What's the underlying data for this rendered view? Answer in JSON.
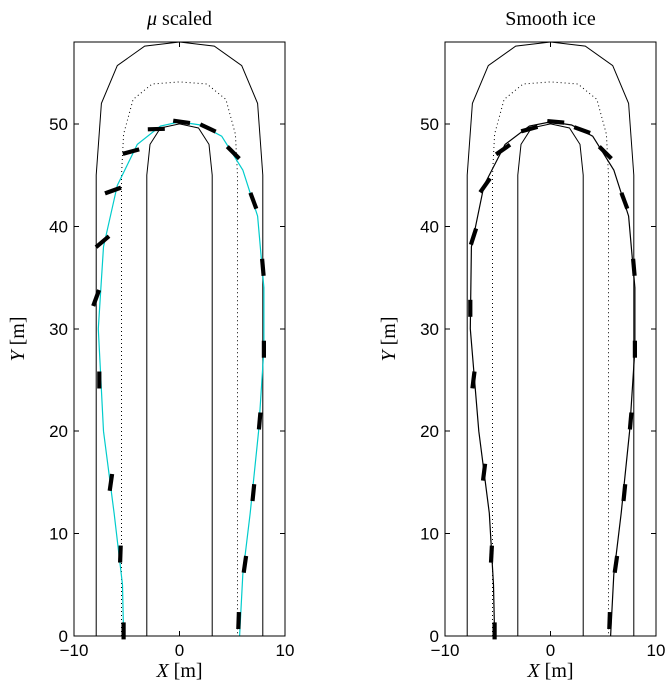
{
  "chart_data": [
    {
      "type": "line",
      "title_symbol": "μ",
      "title_text": "scaled",
      "xlabel_var": "X",
      "xlabel_unit": "[m]",
      "ylabel_var": "Y",
      "ylabel_unit": "[m]",
      "xlim": [
        -10,
        10
      ],
      "ylim": [
        0,
        58
      ],
      "xticks": [
        -10,
        0,
        10
      ],
      "yticks": [
        0,
        10,
        20,
        30,
        40,
        50
      ],
      "grid": false,
      "legend": "none",
      "track": {
        "outer": [
          [
            -7.9,
            0
          ],
          [
            -7.9,
            45
          ],
          [
            -7.4,
            52
          ],
          [
            -5.9,
            55.7
          ],
          [
            -3.3,
            57.6
          ],
          [
            0,
            58
          ],
          [
            3.3,
            57.6
          ],
          [
            5.9,
            55.7
          ],
          [
            7.4,
            52
          ],
          [
            7.9,
            45
          ],
          [
            7.9,
            0
          ]
        ],
        "inner": [
          [
            -3.1,
            0
          ],
          [
            -3.1,
            45
          ],
          [
            -2.8,
            48
          ],
          [
            -1.8,
            49.6
          ],
          [
            0,
            50
          ],
          [
            1.8,
            49.6
          ],
          [
            2.8,
            48
          ],
          [
            3.1,
            45
          ],
          [
            3.1,
            0
          ]
        ],
        "center": [
          [
            -5.5,
            0
          ],
          [
            -5.5,
            45
          ],
          [
            -5.3,
            49
          ],
          [
            -4.4,
            52.4
          ],
          [
            -2.6,
            53.9
          ],
          [
            0,
            54.1
          ],
          [
            2.6,
            53.9
          ],
          [
            4.4,
            52.4
          ],
          [
            5.3,
            49
          ],
          [
            5.5,
            45
          ],
          [
            5.5,
            0
          ]
        ]
      },
      "path": [
        [
          -5.3,
          0
        ],
        [
          -5.4,
          5
        ],
        [
          -6.2,
          12
        ],
        [
          -7.2,
          20
        ],
        [
          -7.7,
          30
        ],
        [
          -7.2,
          38
        ],
        [
          -5.9,
          44
        ],
        [
          -4.0,
          48
        ],
        [
          -1.8,
          49.8
        ],
        [
          0,
          50.2
        ],
        [
          2.0,
          49.9
        ],
        [
          4.0,
          48.8
        ],
        [
          6.0,
          45.5
        ],
        [
          7.4,
          41
        ],
        [
          8.0,
          34
        ],
        [
          8.0,
          28
        ],
        [
          7.5,
          20
        ],
        [
          6.7,
          12
        ],
        [
          6.0,
          6
        ],
        [
          5.7,
          0
        ]
      ],
      "heading_segments": [
        {
          "x": -5.3,
          "y": 0.5,
          "angle": 90
        },
        {
          "x": -5.6,
          "y": 8,
          "angle": 88
        },
        {
          "x": -6.5,
          "y": 15,
          "angle": 82
        },
        {
          "x": -7.6,
          "y": 25,
          "angle": 90
        },
        {
          "x": -7.9,
          "y": 33,
          "angle": 70
        },
        {
          "x": -7.3,
          "y": 38.5,
          "angle": 40
        },
        {
          "x": -6.3,
          "y": 43.5,
          "angle": 20
        },
        {
          "x": -4.6,
          "y": 47.3,
          "angle": 15
        },
        {
          "x": -2.2,
          "y": 49.5,
          "angle": 2
        },
        {
          "x": 0.2,
          "y": 50.2,
          "angle": -8
        },
        {
          "x": 2.7,
          "y": 49.6,
          "angle": -25
        },
        {
          "x": 5.1,
          "y": 47.2,
          "angle": -45
        },
        {
          "x": 7.0,
          "y": 42.5,
          "angle": -70
        },
        {
          "x": 7.9,
          "y": 36,
          "angle": -85
        },
        {
          "x": 8.0,
          "y": 28,
          "angle": -90
        },
        {
          "x": 7.6,
          "y": 21,
          "angle": -95
        },
        {
          "x": 7.0,
          "y": 14,
          "angle": -96
        },
        {
          "x": 6.2,
          "y": 7,
          "angle": -98
        },
        {
          "x": 5.6,
          "y": 1.5,
          "angle": -92
        }
      ],
      "colors": {
        "path": "#00cccc",
        "track": "#000000",
        "vehicle": "#000000"
      }
    },
    {
      "type": "line",
      "title_symbol": "",
      "title_text": "Smooth ice",
      "xlabel_var": "X",
      "xlabel_unit": "[m]",
      "ylabel_var": "Y",
      "ylabel_unit": "[m]",
      "xlim": [
        -10,
        10
      ],
      "ylim": [
        0,
        58
      ],
      "xticks": [
        -10,
        0,
        10
      ],
      "yticks": [
        0,
        10,
        20,
        30,
        40,
        50
      ],
      "grid": false,
      "legend": "none",
      "track": {
        "outer": [
          [
            -7.9,
            0
          ],
          [
            -7.9,
            45
          ],
          [
            -7.4,
            52
          ],
          [
            -5.9,
            55.7
          ],
          [
            -3.3,
            57.6
          ],
          [
            0,
            58
          ],
          [
            3.3,
            57.6
          ],
          [
            5.9,
            55.7
          ],
          [
            7.4,
            52
          ],
          [
            7.9,
            45
          ],
          [
            7.9,
            0
          ]
        ],
        "inner": [
          [
            -3.1,
            0
          ],
          [
            -3.1,
            45
          ],
          [
            -2.8,
            48
          ],
          [
            -1.8,
            49.6
          ],
          [
            0,
            50
          ],
          [
            1.8,
            49.6
          ],
          [
            2.8,
            48
          ],
          [
            3.1,
            45
          ],
          [
            3.1,
            0
          ]
        ],
        "center": [
          [
            -5.5,
            0
          ],
          [
            -5.5,
            45
          ],
          [
            -5.3,
            49
          ],
          [
            -4.4,
            52.4
          ],
          [
            -2.6,
            53.9
          ],
          [
            0,
            54.1
          ],
          [
            2.6,
            53.9
          ],
          [
            4.4,
            52.4
          ],
          [
            5.3,
            49
          ],
          [
            5.5,
            45
          ],
          [
            5.5,
            0
          ]
        ]
      },
      "path": [
        [
          -5.3,
          0
        ],
        [
          -5.4,
          5
        ],
        [
          -5.8,
          12
        ],
        [
          -6.8,
          20
        ],
        [
          -7.6,
          30
        ],
        [
          -7.5,
          38
        ],
        [
          -6.3,
          44
        ],
        [
          -4.3,
          48
        ],
        [
          -2.0,
          49.8
        ],
        [
          0,
          50.2
        ],
        [
          2.0,
          49.9
        ],
        [
          4.0,
          48.8
        ],
        [
          6.0,
          45.5
        ],
        [
          7.4,
          41
        ],
        [
          8.0,
          34
        ],
        [
          8.0,
          28
        ],
        [
          7.5,
          20
        ],
        [
          6.7,
          12
        ],
        [
          6.0,
          6
        ],
        [
          5.7,
          0
        ]
      ],
      "heading_segments": [
        {
          "x": -5.3,
          "y": 0.5,
          "angle": 90
        },
        {
          "x": -5.6,
          "y": 8,
          "angle": 87
        },
        {
          "x": -6.3,
          "y": 16,
          "angle": 83
        },
        {
          "x": -7.3,
          "y": 25,
          "angle": 83
        },
        {
          "x": -7.6,
          "y": 32,
          "angle": 90
        },
        {
          "x": -7.3,
          "y": 39,
          "angle": 72
        },
        {
          "x": -6.2,
          "y": 44,
          "angle": 55
        },
        {
          "x": -4.5,
          "y": 47.5,
          "angle": 35
        },
        {
          "x": -2.0,
          "y": 49.5,
          "angle": 15
        },
        {
          "x": 0.5,
          "y": 50.2,
          "angle": -5
        },
        {
          "x": 3.0,
          "y": 49.4,
          "angle": -20
        },
        {
          "x": 5.2,
          "y": 47.2,
          "angle": -45
        },
        {
          "x": 7.0,
          "y": 42.5,
          "angle": -70
        },
        {
          "x": 7.9,
          "y": 36,
          "angle": -85
        },
        {
          "x": 8.0,
          "y": 28,
          "angle": -90
        },
        {
          "x": 7.6,
          "y": 21,
          "angle": -95
        },
        {
          "x": 7.0,
          "y": 14,
          "angle": -96
        },
        {
          "x": 6.2,
          "y": 7,
          "angle": -98
        },
        {
          "x": 5.6,
          "y": 1.5,
          "angle": -92
        }
      ],
      "colors": {
        "path": "#000000",
        "track": "#000000",
        "vehicle": "#000000"
      }
    }
  ]
}
